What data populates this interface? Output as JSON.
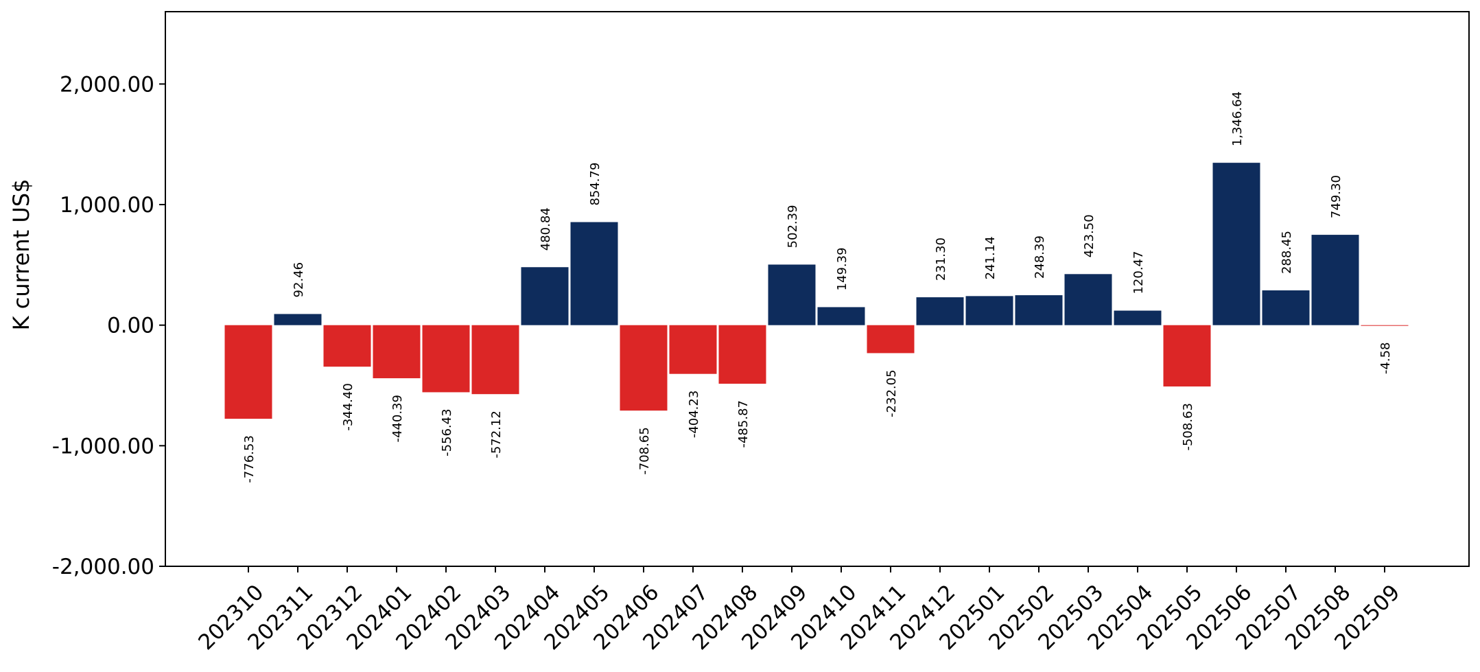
{
  "chart_data": {
    "type": "bar",
    "title": "",
    "xlabel": "",
    "ylabel": "K current US$",
    "ylim": [
      -2000,
      2600
    ],
    "yticks": [
      -2000,
      -1000,
      0,
      1000,
      2000
    ],
    "ytick_labels": [
      "-2,000.00",
      "-1,000.00",
      "0.00",
      "1,000.00",
      "2,000.00"
    ],
    "grid": false,
    "legend": "none",
    "colors": {
      "positive": "#0e2c5c",
      "negative": "#dc2626"
    },
    "categories": [
      "202310",
      "202311",
      "202312",
      "202401",
      "202402",
      "202403",
      "202404",
      "202405",
      "202406",
      "202407",
      "202408",
      "202409",
      "202410",
      "202411",
      "202412",
      "202501",
      "202502",
      "202503",
      "202504",
      "202505",
      "202506",
      "202507",
      "202508",
      "202509"
    ],
    "values": [
      -776.53,
      92.46,
      -344.4,
      -440.39,
      -556.43,
      -572.12,
      480.84,
      854.79,
      -708.65,
      -404.23,
      -485.87,
      502.39,
      149.39,
      -232.05,
      231.3,
      241.14,
      248.39,
      423.5,
      120.47,
      -508.63,
      1346.64,
      288.45,
      749.3,
      -4.58
    ],
    "data_labels": [
      "-776.53",
      "92.46",
      "-344.40",
      "-440.39",
      "-556.43",
      "-572.12",
      "480.84",
      "854.79",
      "-708.65",
      "-404.23",
      "-485.87",
      "502.39",
      "149.39",
      "-232.05",
      "231.30",
      "241.14",
      "248.39",
      "423.50",
      "120.47",
      "-508.63",
      "1,346.64",
      "288.45",
      "749.30",
      "-4.58"
    ]
  }
}
